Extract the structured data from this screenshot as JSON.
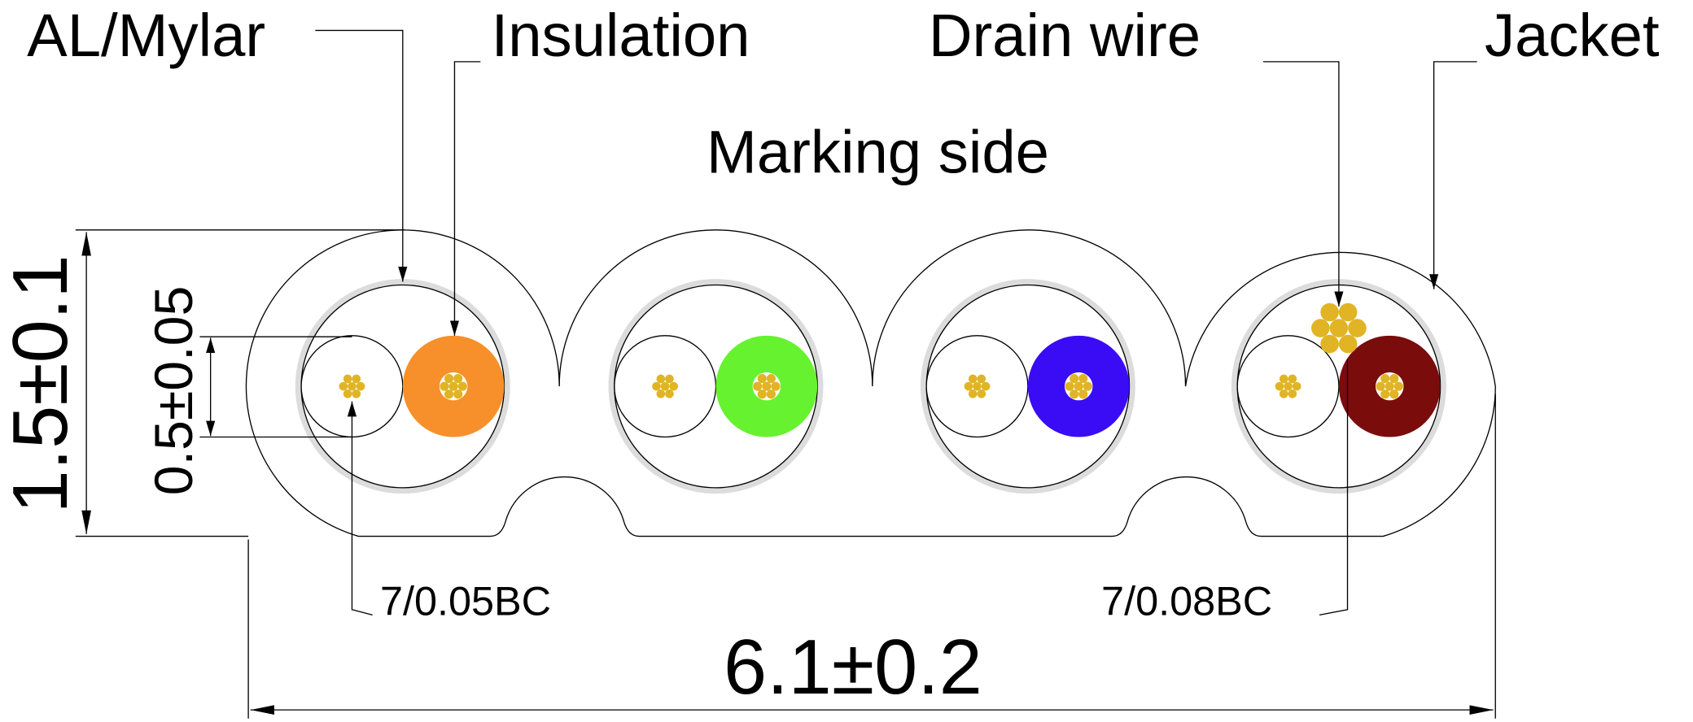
{
  "labels": {
    "al_mylar": "AL/Mylar",
    "insulation": "Insulation",
    "drain_wire": "Drain wire",
    "jacket": "Jacket",
    "marking_side": "Marking side",
    "conductor_small": "7/0.05BC",
    "conductor_drain": "7/0.08BC"
  },
  "dimensions": {
    "height": "1.5±0.1",
    "insulation_diameter": "0.5±0.05",
    "width": "6.1±0.2"
  },
  "colors": {
    "conductor": "#e0b424",
    "shield": "#dcdcdc",
    "pairs": [
      "#f7902a",
      "#66f22e",
      "#3a0cf5",
      "#7a0c0c"
    ]
  }
}
